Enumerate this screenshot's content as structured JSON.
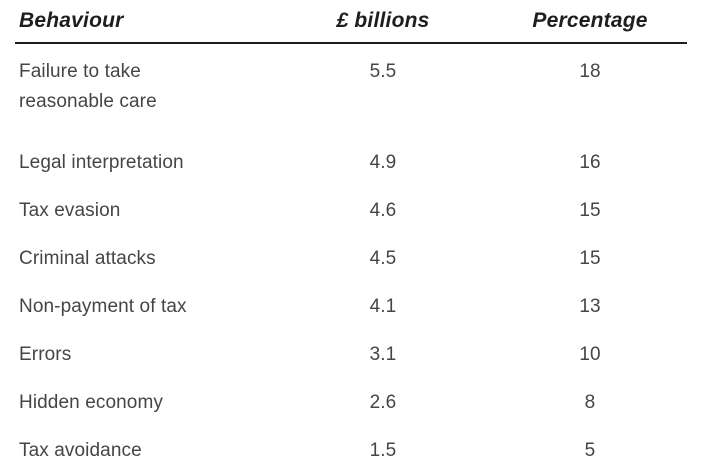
{
  "table": {
    "columns": [
      {
        "label": "Behaviour"
      },
      {
        "label": "£ billions"
      },
      {
        "label": "Percentage"
      }
    ],
    "rows": [
      {
        "behaviour": "Failure to take reasonable care",
        "billions": "5.5",
        "percentage": "18"
      },
      {
        "behaviour": "Legal interpretation",
        "billions": "4.9",
        "percentage": "16"
      },
      {
        "behaviour": "Tax evasion",
        "billions": "4.6",
        "percentage": "15"
      },
      {
        "behaviour": "Criminal attacks",
        "billions": "4.5",
        "percentage": "15"
      },
      {
        "behaviour": "Non-payment of tax",
        "billions": "4.1",
        "percentage": "13"
      },
      {
        "behaviour": "Errors",
        "billions": "3.1",
        "percentage": "10"
      },
      {
        "behaviour": "Hidden economy",
        "billions": "2.6",
        "percentage": "8"
      },
      {
        "behaviour": "Tax avoidance",
        "billions": "1.5",
        "percentage": "5"
      }
    ]
  },
  "colors": {
    "background": "#ffffff",
    "header_text": "#1e1e1e",
    "body_text": "#454545",
    "header_rule": "#1c1c1c"
  },
  "chart_data": {
    "type": "table",
    "title": "",
    "categories": [
      "Failure to take reasonable care",
      "Legal interpretation",
      "Tax evasion",
      "Criminal attacks",
      "Non-payment of tax",
      "Errors",
      "Hidden economy",
      "Tax avoidance"
    ],
    "series": [
      {
        "name": "£ billions",
        "values": [
          5.5,
          4.9,
          4.6,
          4.5,
          4.1,
          3.1,
          2.6,
          1.5
        ]
      },
      {
        "name": "Percentage",
        "values": [
          18,
          16,
          15,
          15,
          13,
          10,
          8,
          5
        ]
      }
    ]
  }
}
